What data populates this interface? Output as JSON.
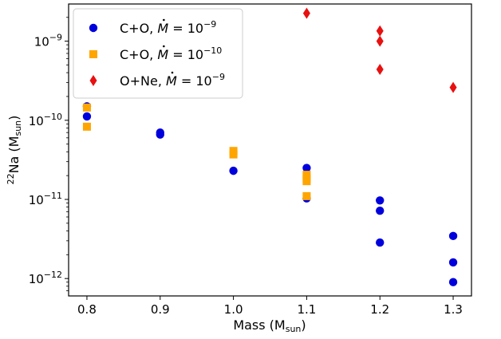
{
  "chart_data": {
    "type": "scatter",
    "xlabel": "Mass (M",
    "xlabel_sub": "sun",
    "xlabel_close": ")",
    "ylabel_sup": "22",
    "ylabel": "Na (M",
    "ylabel_sub": "sun",
    "ylabel_close": ")",
    "x_range": [
      0.775,
      1.325
    ],
    "y_range_log10": [
      -12.22,
      -8.53
    ],
    "x_ticks": [
      {
        "value": 0.8,
        "label": "0.8"
      },
      {
        "value": 0.9,
        "label": "0.9"
      },
      {
        "value": 1.0,
        "label": "1.0"
      },
      {
        "value": 1.1,
        "label": "1.1"
      },
      {
        "value": 1.2,
        "label": "1.2"
      },
      {
        "value": 1.3,
        "label": "1.3"
      }
    ],
    "y_ticks": [
      {
        "exp": -9,
        "base": "10",
        "sup": "−9"
      },
      {
        "exp": -10,
        "base": "10",
        "sup": "−10"
      },
      {
        "exp": -11,
        "base": "10",
        "sup": "−11"
      },
      {
        "exp": -12,
        "base": "10",
        "sup": "−12"
      }
    ],
    "legend_position": "top-left",
    "series": [
      {
        "name": "C+O, Ṁ = 10^-9",
        "legend_prefix": "C+O, ",
        "legend_math": "M",
        "legend_eq": " = 10",
        "legend_sup": "−9",
        "marker": "circle",
        "color": "#0000dd",
        "points": [
          {
            "x": 0.8,
            "y": 1.5e-10
          },
          {
            "x": 0.8,
            "y": 1.12e-10
          },
          {
            "x": 0.9,
            "y": 7e-11
          },
          {
            "x": 0.9,
            "y": 6.6e-11
          },
          {
            "x": 1.0,
            "y": 2.3e-11
          },
          {
            "x": 1.1,
            "y": 2.5e-11
          },
          {
            "x": 1.1,
            "y": 1.03e-11
          },
          {
            "x": 1.2,
            "y": 9.7e-12
          },
          {
            "x": 1.2,
            "y": 7.2e-12
          },
          {
            "x": 1.2,
            "y": 2.85e-12
          },
          {
            "x": 1.3,
            "y": 3.45e-12
          },
          {
            "x": 1.3,
            "y": 1.6e-12
          },
          {
            "x": 1.3,
            "y": 9e-13
          }
        ]
      },
      {
        "name": "C+O, Ṁ = 10^-10",
        "legend_prefix": "C+O, ",
        "legend_math": "M",
        "legend_eq": " = 10",
        "legend_sup": "−10",
        "marker": "square",
        "color": "#ffa500",
        "points": [
          {
            "x": 0.8,
            "y": 1.45e-10
          },
          {
            "x": 0.8,
            "y": 8.3e-11
          },
          {
            "x": 1.0,
            "y": 4.1e-11
          },
          {
            "x": 1.0,
            "y": 3.7e-11
          },
          {
            "x": 1.1,
            "y": 2.05e-11
          },
          {
            "x": 1.1,
            "y": 1.85e-11
          },
          {
            "x": 1.1,
            "y": 1.7e-11
          },
          {
            "x": 1.1,
            "y": 1.1e-11
          }
        ]
      },
      {
        "name": "O+Ne, Ṁ = 10^-9",
        "legend_prefix": "O+Ne, ",
        "legend_math": "M",
        "legend_eq": " = 10",
        "legend_sup": "−9",
        "marker": "diamond",
        "color": "#e81010",
        "points": [
          {
            "x": 1.1,
            "y": 2.25e-09
          },
          {
            "x": 1.2,
            "y": 1.35e-09
          },
          {
            "x": 1.2,
            "y": 1e-09
          },
          {
            "x": 1.2,
            "y": 4.4e-10
          },
          {
            "x": 1.3,
            "y": 2.6e-10
          }
        ]
      }
    ]
  }
}
